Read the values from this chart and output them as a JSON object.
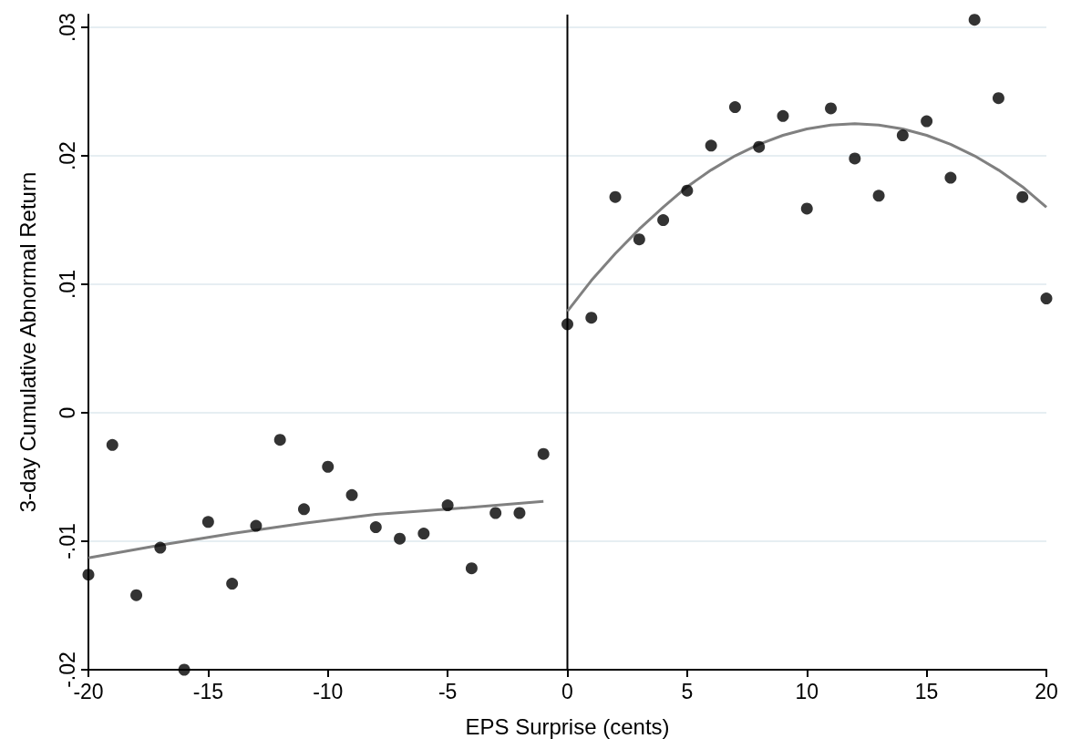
{
  "chart_data": {
    "type": "scatter",
    "xlabel": "EPS Surprise (cents)",
    "ylabel": "3-day Cumulative Abnormal Return",
    "xlim": [
      -20,
      20
    ],
    "xticks": [
      -20,
      -15,
      -10,
      -5,
      0,
      5,
      10,
      15,
      20
    ],
    "ylim": [
      -0.02,
      0.031
    ],
    "yticks": [
      {
        "value": -0.02,
        "label": "-.02"
      },
      {
        "value": -0.01,
        "label": "-.01"
      },
      {
        "value": 0,
        "label": "0"
      },
      {
        "value": 0.01,
        "label": ".01"
      },
      {
        "value": 0.02,
        "label": ".02"
      },
      {
        "value": 0.03,
        "label": ".03"
      }
    ],
    "grid": "y",
    "marker": "circle",
    "ref_lines": [
      {
        "axis": "x",
        "value": 0,
        "color": "#000000",
        "line_style": "solid"
      }
    ],
    "series": [
      {
        "color": "#000000",
        "x": [
          -20,
          -19,
          -18,
          -17,
          -16,
          -15,
          -14,
          -13,
          -12,
          -11,
          -10,
          -9,
          -8,
          -7,
          -6,
          -5,
          -4,
          -3,
          -2,
          -1
        ],
        "values": [
          -0.0126,
          -0.0025,
          -0.0142,
          -0.0105,
          -0.02,
          -0.0085,
          -0.0133,
          -0.0088,
          -0.0021,
          -0.0075,
          -0.0042,
          -0.0064,
          -0.0089,
          -0.0098,
          -0.0094,
          -0.0072,
          -0.0121,
          -0.0078,
          -0.0078,
          -0.0032
        ]
      },
      {
        "color": "#000000",
        "x": [
          0,
          1,
          2,
          3,
          4,
          5,
          6,
          7,
          8,
          9,
          10,
          11,
          12,
          13,
          14,
          15,
          16,
          17,
          18,
          19,
          20
        ],
        "values": [
          0.0069,
          0.0074,
          0.0168,
          0.0135,
          0.015,
          0.0173,
          0.0208,
          0.0238,
          0.0207,
          0.0231,
          0.0159,
          0.0237,
          0.0198,
          0.0169,
          0.0216,
          0.0227,
          0.0183,
          0.0306,
          0.0245,
          0.0168,
          0.0089
        ]
      },
      {
        "type": "line",
        "color": "#808080",
        "marker": "none",
        "x": [
          -20,
          -17,
          -14,
          -11,
          -8,
          -5,
          -1
        ],
        "values": [
          -0.0113,
          -0.0103,
          -0.0094,
          -0.0086,
          -0.0079,
          -0.0075,
          -0.0069
        ]
      },
      {
        "type": "line",
        "color": "#808080",
        "marker": "none",
        "x": [
          0,
          1,
          2,
          3,
          4,
          5,
          6,
          7,
          8,
          9,
          10,
          11,
          12,
          13,
          14,
          15,
          16,
          17,
          18,
          19,
          20
        ],
        "values": [
          0.0079,
          0.0103,
          0.0124,
          0.0143,
          0.016,
          0.0176,
          0.0189,
          0.02,
          0.0209,
          0.0216,
          0.0221,
          0.0224,
          0.0225,
          0.0224,
          0.0221,
          0.0216,
          0.0209,
          0.02,
          0.0189,
          0.0176,
          0.016
        ]
      }
    ]
  }
}
